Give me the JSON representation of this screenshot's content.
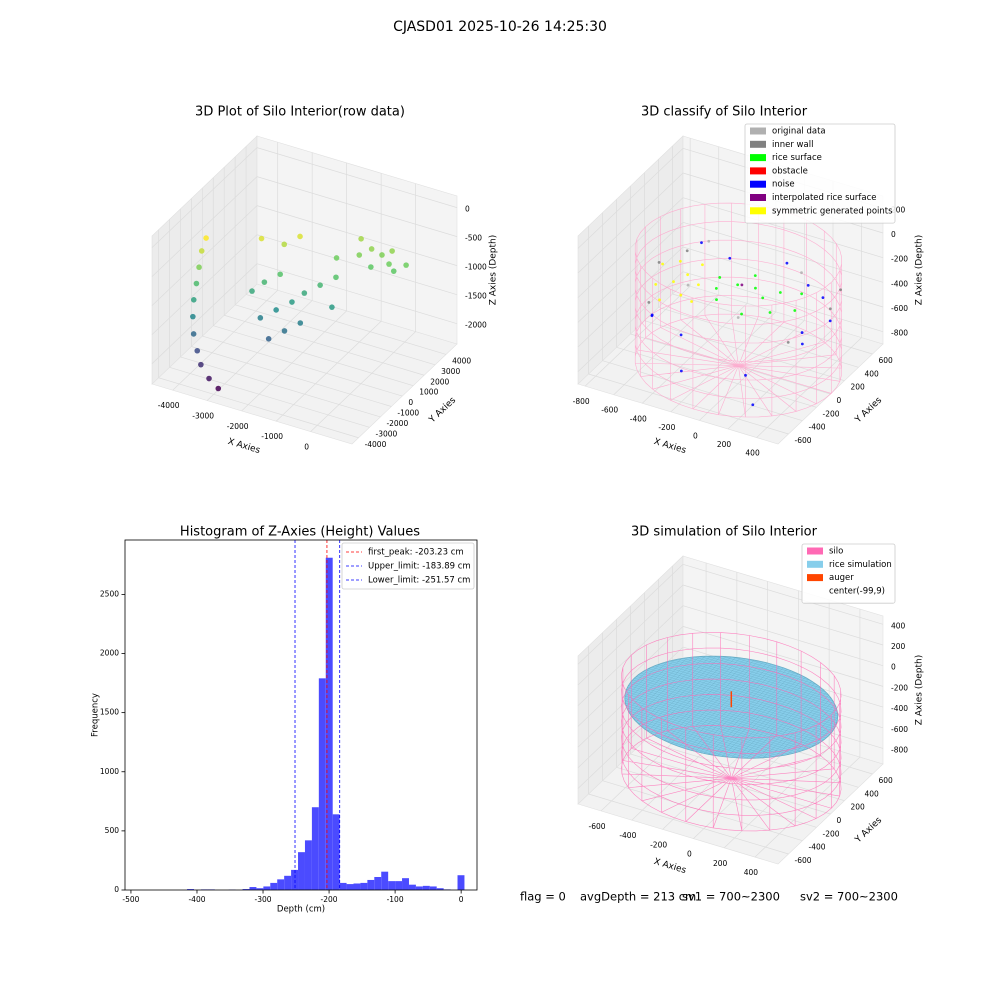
{
  "title": "CJASD01 2025-10-26 14:25:30",
  "chart_data": [
    {
      "type": "scatter3d",
      "title": "3D Plot of Silo Interior(row data)",
      "xlabel": "X Axies",
      "ylabel": "Y Axies",
      "zlabel": "Z Axies (Depth)",
      "xlim": [
        -4600,
        1200
      ],
      "ylim": [
        -4600,
        5000
      ],
      "zlim": [
        -2350,
        200
      ],
      "xticks": [
        -4000,
        -3000,
        -2000,
        -1000,
        0
      ],
      "yticks": [
        -4000,
        -3000,
        -2000,
        -1000,
        0,
        1000,
        2000,
        3000,
        4000
      ],
      "zticks": [
        0,
        -500,
        -1000,
        -1500,
        -2000
      ],
      "series": [
        {
          "colormap": "viridis",
          "x": [
            -4300,
            -4300,
            -4250,
            -4200,
            -4150,
            -4050,
            -3900,
            -3700,
            -3500,
            -3200,
            -2900,
            -3000,
            -2800,
            -2500,
            -2600,
            -2300,
            -2000,
            -1800,
            -2200,
            -1900,
            -1600,
            -1500,
            -1200,
            -1000,
            -2700,
            -3200,
            -2400,
            -1500,
            -1000,
            -800,
            -500,
            -300,
            -200,
            0,
            200,
            -600,
            -1200
          ],
          "y": [
            -600,
            -1000,
            -1400,
            -1800,
            -2200,
            -2600,
            -3000,
            -3300,
            -3600,
            -3800,
            -3900,
            -500,
            0,
            500,
            -1000,
            -500,
            0,
            500,
            -1500,
            -1000,
            -500,
            1000,
            1500,
            500,
            1500,
            1000,
            2000,
            2500,
            3000,
            3500,
            3500,
            3800,
            3200,
            3000,
            3500,
            2800,
            3800
          ],
          "z": [
            -500,
            -650,
            -850,
            -1050,
            -1250,
            -1450,
            -1650,
            -1850,
            -2000,
            -2150,
            -2250,
            -1200,
            -1100,
            -1000,
            -1500,
            -1400,
            -1300,
            -1200,
            -1700,
            -1600,
            -1500,
            -1100,
            -1000,
            -1300,
            -700,
            -600,
            -600,
            -900,
            -850,
            -800,
            -850,
            -800,
            -900,
            -950,
            -900,
            -950,
            -750
          ]
        }
      ]
    },
    {
      "type": "scatter3d",
      "title": "3D classify of Silo Interior",
      "xlabel": "X Axies",
      "ylabel": "Y Axies",
      "zlabel": "Z Axies (Depth)",
      "xlim": [
        -850,
        550
      ],
      "ylim": [
        -750,
        750
      ],
      "zlim": [
        -900,
        300
      ],
      "xticks": [
        -800,
        -600,
        -400,
        -200,
        0,
        200,
        400
      ],
      "yticks": [
        -600,
        -400,
        -200,
        0,
        200,
        400,
        600
      ],
      "zticks": [
        200,
        0,
        -200,
        -400,
        -600,
        -800
      ],
      "series": [
        {
          "name": "original data",
          "color": "#b0b0b0",
          "x": [
            -400,
            200,
            -300,
            100
          ],
          "y": [
            200,
            300,
            -300,
            -400
          ],
          "z": [
            -100,
            -200,
            -150,
            -220
          ]
        },
        {
          "name": "inner wall",
          "color": "#808080",
          "x": [
            -600,
            -550,
            400,
            450,
            -650,
            500
          ],
          "y": [
            300,
            -350,
            450,
            -400,
            0,
            100
          ],
          "z": [
            -300,
            -350,
            -350,
            -300,
            -250,
            -280
          ]
        },
        {
          "name": "rice surface",
          "color": "#00ff00",
          "x": [
            -200,
            -100,
            0,
            100,
            -50,
            150,
            -250,
            200,
            250,
            -150,
            300,
            50
          ],
          "y": [
            -100,
            0,
            50,
            -50,
            150,
            100,
            50,
            -150,
            200,
            -200,
            0,
            -250
          ],
          "z": [
            -250,
            -240,
            -260,
            -250,
            -230,
            -270,
            -260,
            -280,
            -300,
            -270,
            -310,
            -290
          ]
        },
        {
          "name": "obstacle",
          "color": "#ff0000",
          "x": [],
          "y": [],
          "z": []
        },
        {
          "name": "noise",
          "color": "#0000ff",
          "x": [
            350,
            400,
            -500,
            -300,
            0,
            450,
            -600,
            200,
            -400,
            500,
            -200,
            100,
            -700,
            300
          ],
          "y": [
            300,
            -100,
            300,
            -400,
            500,
            200,
            -200,
            -500,
            500,
            -300,
            -600,
            600,
            0,
            -600
          ],
          "z": [
            -350,
            -400,
            -200,
            -500,
            -300,
            -450,
            -550,
            -600,
            -400,
            -350,
            -650,
            -500,
            -700,
            -750
          ]
        },
        {
          "name": "interpolated rice surface",
          "color": "#800080",
          "x": [
            -80
          ],
          "y": [
            20
          ],
          "z": [
            -245
          ]
        },
        {
          "name": "symmetric generated points",
          "color": "#ffff00",
          "x": [
            -500,
            -450,
            -400,
            -550,
            -350,
            -600,
            -420,
            -300,
            -500,
            -650
          ],
          "y": [
            -100,
            0,
            -200,
            100,
            -50,
            -150,
            150,
            -250,
            -300,
            50
          ],
          "z": [
            -300,
            -280,
            -320,
            -260,
            -300,
            -330,
            -270,
            -310,
            -340,
            -290
          ]
        },
        {
          "shape": "cylinder",
          "color": "#ff9ec8",
          "center": [
            -99,
            9
          ],
          "radius": 650,
          "zrange": [
            -900,
            0
          ]
        }
      ]
    },
    {
      "type": "histogram",
      "title": "Histogram of Z-Axies (Height) Values",
      "xlabel": "Depth (cm)",
      "ylabel": "Frequency",
      "color": "#4b4bff",
      "xlim": [
        -509,
        24
      ],
      "ylim": [
        0,
        2960
      ],
      "xticks": [
        -500,
        -400,
        -300,
        -200,
        -100,
        0
      ],
      "yticks": [
        0,
        500,
        1000,
        1500,
        2000,
        2500
      ],
      "bins": [
        -415,
        -404.5,
        -394,
        -383.5,
        -373,
        -362.5,
        -352,
        -341.5,
        -331,
        -320.5,
        -310,
        -299.5,
        -289,
        -278.5,
        -268,
        -257.5,
        -247,
        -236.5,
        -226,
        -215.5,
        -205,
        -194.5,
        -184,
        -173.5,
        -163,
        -152.5,
        -142,
        -131.5,
        -121,
        -110.5,
        -100,
        -89.5,
        -79,
        -68.5,
        -58,
        -47.5,
        -37,
        -26.5,
        -16,
        -5.5,
        5
      ],
      "values": [
        8,
        0,
        5,
        5,
        0,
        0,
        3,
        0,
        8,
        25,
        15,
        30,
        60,
        90,
        120,
        170,
        320,
        420,
        700,
        1790,
        2810,
        640,
        60,
        50,
        55,
        60,
        85,
        110,
        155,
        75,
        75,
        100,
        45,
        30,
        35,
        30,
        15,
        5,
        0,
        125
      ],
      "vlines": [
        {
          "label": "first_peak: -203.23 cm",
          "value": -203.23,
          "color": "#ff0000"
        },
        {
          "label": "Upper_limit: -183.89 cm",
          "value": -183.89,
          "color": "#0000ff"
        },
        {
          "label": "Lower_limit: -251.57 cm",
          "value": -251.57,
          "color": "#0000ff"
        }
      ]
    },
    {
      "type": "scatter3d",
      "title": "3D simulation of Silo Interior",
      "xlabel": "X Axies",
      "ylabel": "Y Axies",
      "zlabel": "Z Axies (Depth)",
      "xlim": [
        -750,
        550
      ],
      "ylim": [
        -750,
        750
      ],
      "zlim": [
        -950,
        480
      ],
      "xticks": [
        -600,
        -400,
        -200,
        0,
        200,
        400
      ],
      "yticks": [
        -600,
        -400,
        -200,
        0,
        200,
        400,
        600
      ],
      "zticks": [
        400,
        200,
        0,
        -200,
        -400,
        -600,
        -800
      ],
      "series": [
        {
          "name": "silo",
          "color": "#ff69b4",
          "shape": "cylinder",
          "center": [
            -99,
            9
          ],
          "radius": 650,
          "zrange": [
            -900,
            0
          ]
        },
        {
          "name": "rice simulation",
          "color": "#87ceeb",
          "shape": "disk",
          "center": [
            -99,
            9
          ],
          "radius": 630,
          "z": -213
        },
        {
          "name": "auger",
          "color": "#ff4500",
          "shape": "line",
          "x": [
            -99,
            -99
          ],
          "y": [
            9,
            9
          ],
          "z": [
            -213,
            -60
          ]
        },
        {
          "name": "center(-99,9)"
        }
      ]
    }
  ],
  "status": [
    "flag = 0",
    "avgDepth = 213 cm",
    "sv1 = 700~2300",
    "sv2 = 700~2300"
  ]
}
